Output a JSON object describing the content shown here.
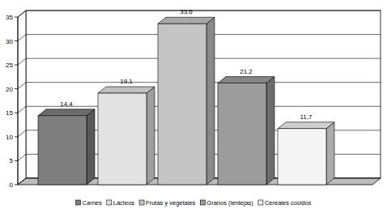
{
  "chart_data": {
    "type": "bar",
    "categories": [
      "Carnes",
      "Lácteos",
      "Frutas y vegetales",
      "Granos (lentejas)",
      "Cereales cocidos"
    ],
    "values": [
      14.4,
      19.1,
      33.6,
      21.2,
      11.7
    ],
    "value_labels": [
      "14,4",
      "19,1",
      "33,6",
      "21,2",
      "11,7"
    ],
    "colors": [
      "#7f7f7f",
      "#e2e2e2",
      "#c4c4c4",
      "#9c9c9c",
      "#f4f4f4"
    ],
    "ylim": [
      0,
      35
    ],
    "yticks": [
      0,
      5,
      10,
      15,
      20,
      25,
      30,
      35
    ],
    "grid": true,
    "data_labels": true,
    "legend": "bottom"
  }
}
